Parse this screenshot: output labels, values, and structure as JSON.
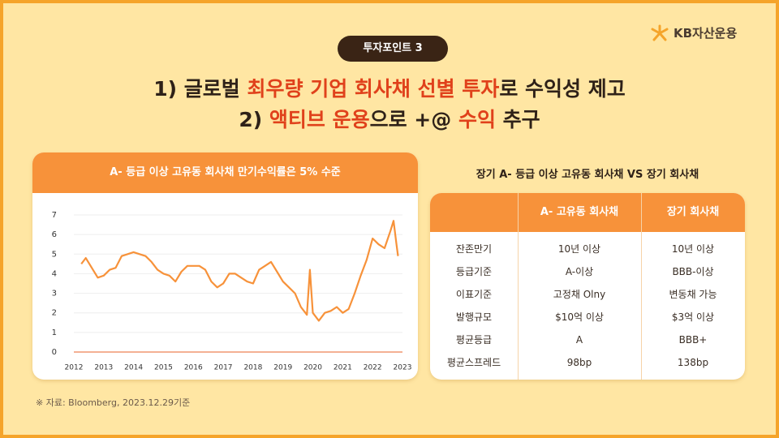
{
  "header": {
    "badge": "투자포인트 3",
    "logo": "KB자산운용",
    "lines": [
      [
        {
          "text": "1) 글로벌 ",
          "highlight": false
        },
        {
          "text": "최우량 기업 회사채 선별 투자",
          "highlight": true
        },
        {
          "text": "로 수익성 제고",
          "highlight": false
        }
      ],
      [
        {
          "text": "2) ",
          "highlight": false
        },
        {
          "text": "액티브 운용",
          "highlight": true
        },
        {
          "text": "으로 +@ ",
          "highlight": false
        },
        {
          "text": "수익",
          "highlight": true
        },
        {
          "text": " 추구",
          "highlight": false
        }
      ]
    ]
  },
  "chart_data": {
    "type": "line",
    "title": "A- 등급 이상 고유동 회사채 만기수익률은 5% 수준",
    "x": [
      2012.25,
      2012.4,
      2012.6,
      2012.8,
      2013.0,
      2013.2,
      2013.4,
      2013.6,
      2013.8,
      2014.0,
      2014.2,
      2014.4,
      2014.6,
      2014.8,
      2015.0,
      2015.2,
      2015.4,
      2015.6,
      2015.8,
      2016.0,
      2016.2,
      2016.4,
      2016.6,
      2016.8,
      2017.0,
      2017.2,
      2017.4,
      2017.6,
      2017.8,
      2018.0,
      2018.2,
      2018.4,
      2018.6,
      2018.8,
      2019.0,
      2019.2,
      2019.4,
      2019.6,
      2019.8,
      2019.9,
      2020.0,
      2020.2,
      2020.4,
      2020.6,
      2020.8,
      2021.0,
      2021.2,
      2021.4,
      2021.6,
      2021.8,
      2022.0,
      2022.2,
      2022.4,
      2022.6,
      2022.7,
      2022.8,
      2022.85
    ],
    "series": [
      {
        "color": "#f7923a",
        "values": [
          4.5,
          4.8,
          4.3,
          3.8,
          3.9,
          4.2,
          4.3,
          4.9,
          5.0,
          5.1,
          5.0,
          4.9,
          4.6,
          4.2,
          4.0,
          3.9,
          3.6,
          4.1,
          4.4,
          4.4,
          4.4,
          4.2,
          3.6,
          3.3,
          3.5,
          4.0,
          4.0,
          3.8,
          3.6,
          3.5,
          4.2,
          4.4,
          4.6,
          4.1,
          3.6,
          3.3,
          3.0,
          2.3,
          1.9,
          4.2,
          2.0,
          1.6,
          2.0,
          2.1,
          2.3,
          2.0,
          2.2,
          3.0,
          3.9,
          4.7,
          5.8,
          5.5,
          5.3,
          6.2,
          6.7,
          5.5,
          4.9
        ]
      }
    ],
    "xlim": [
      2012,
      2023
    ],
    "xticks": [
      2012,
      2013,
      2014,
      2015,
      2016,
      2017,
      2018,
      2019,
      2020,
      2021,
      2022,
      2023
    ],
    "ylim": [
      0,
      7
    ],
    "yticks": [
      0,
      1,
      2,
      3,
      4,
      5,
      6,
      7
    ],
    "grid": true
  },
  "table": {
    "title": "장기 A- 등급 이상 고유동 회사채 VS 장기 회사채",
    "columns": [
      "A- 고유동 회사채",
      "장기 회사채"
    ],
    "rows": [
      [
        "잔존만기",
        "10년 이상",
        "10년 이상"
      ],
      [
        "등급기준",
        "A-이상",
        "BBB-이상"
      ],
      [
        "이표기준",
        "고정채 Olny",
        "변동채 가능"
      ],
      [
        "발행규모",
        "$10억 이상",
        "$3억 이상"
      ],
      [
        "평균등급",
        "A",
        "BBB+"
      ],
      [
        "평균스프레드",
        "98bp",
        "138bp"
      ]
    ]
  },
  "source": "※ 자료: Bloomberg, 2023.12.29기준"
}
